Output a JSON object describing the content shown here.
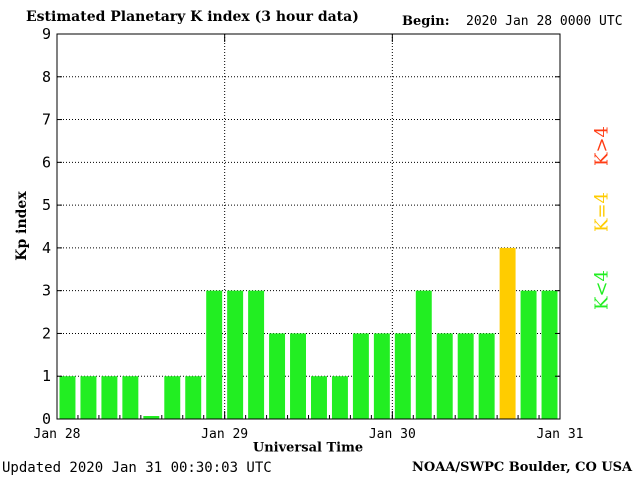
{
  "header": {
    "title": "Estimated Planetary K index (3 hour data)",
    "begin_label": "Begin:",
    "begin_value": "2020 Jan 28 0000 UTC"
  },
  "footer": {
    "updated": "Updated 2020 Jan 31 00:30:03 UTC",
    "credit": "NOAA/SWPC Boulder, CO USA"
  },
  "legend": {
    "high": {
      "label": "K>4",
      "color": "#ff3c14"
    },
    "equal": {
      "label": "K=4",
      "color": "#ffcc00"
    },
    "low": {
      "label": "K<4",
      "color": "#22ee22"
    }
  },
  "chart_data": {
    "type": "bar",
    "title": "Estimated Planetary K index (3 hour data)",
    "xlabel": "Universal Time",
    "ylabel": "Kp index",
    "ylim": [
      0,
      9
    ],
    "yticks": [
      "0",
      "1",
      "2",
      "3",
      "4",
      "5",
      "6",
      "7",
      "8",
      "9"
    ],
    "xticks": [
      "Jan 28",
      "Jan 29",
      "Jan 30",
      "Jan 31"
    ],
    "grid": true,
    "interval_hours": 3,
    "values": [
      1,
      1,
      1,
      1,
      0.07,
      1,
      1,
      3,
      3,
      3,
      2,
      2,
      1,
      1,
      2,
      2,
      2,
      3,
      2,
      2,
      2,
      4,
      3,
      3
    ],
    "colors": {
      "low": "#22ee22",
      "equal": "#ffcc00",
      "high": "#ff3c14"
    }
  }
}
